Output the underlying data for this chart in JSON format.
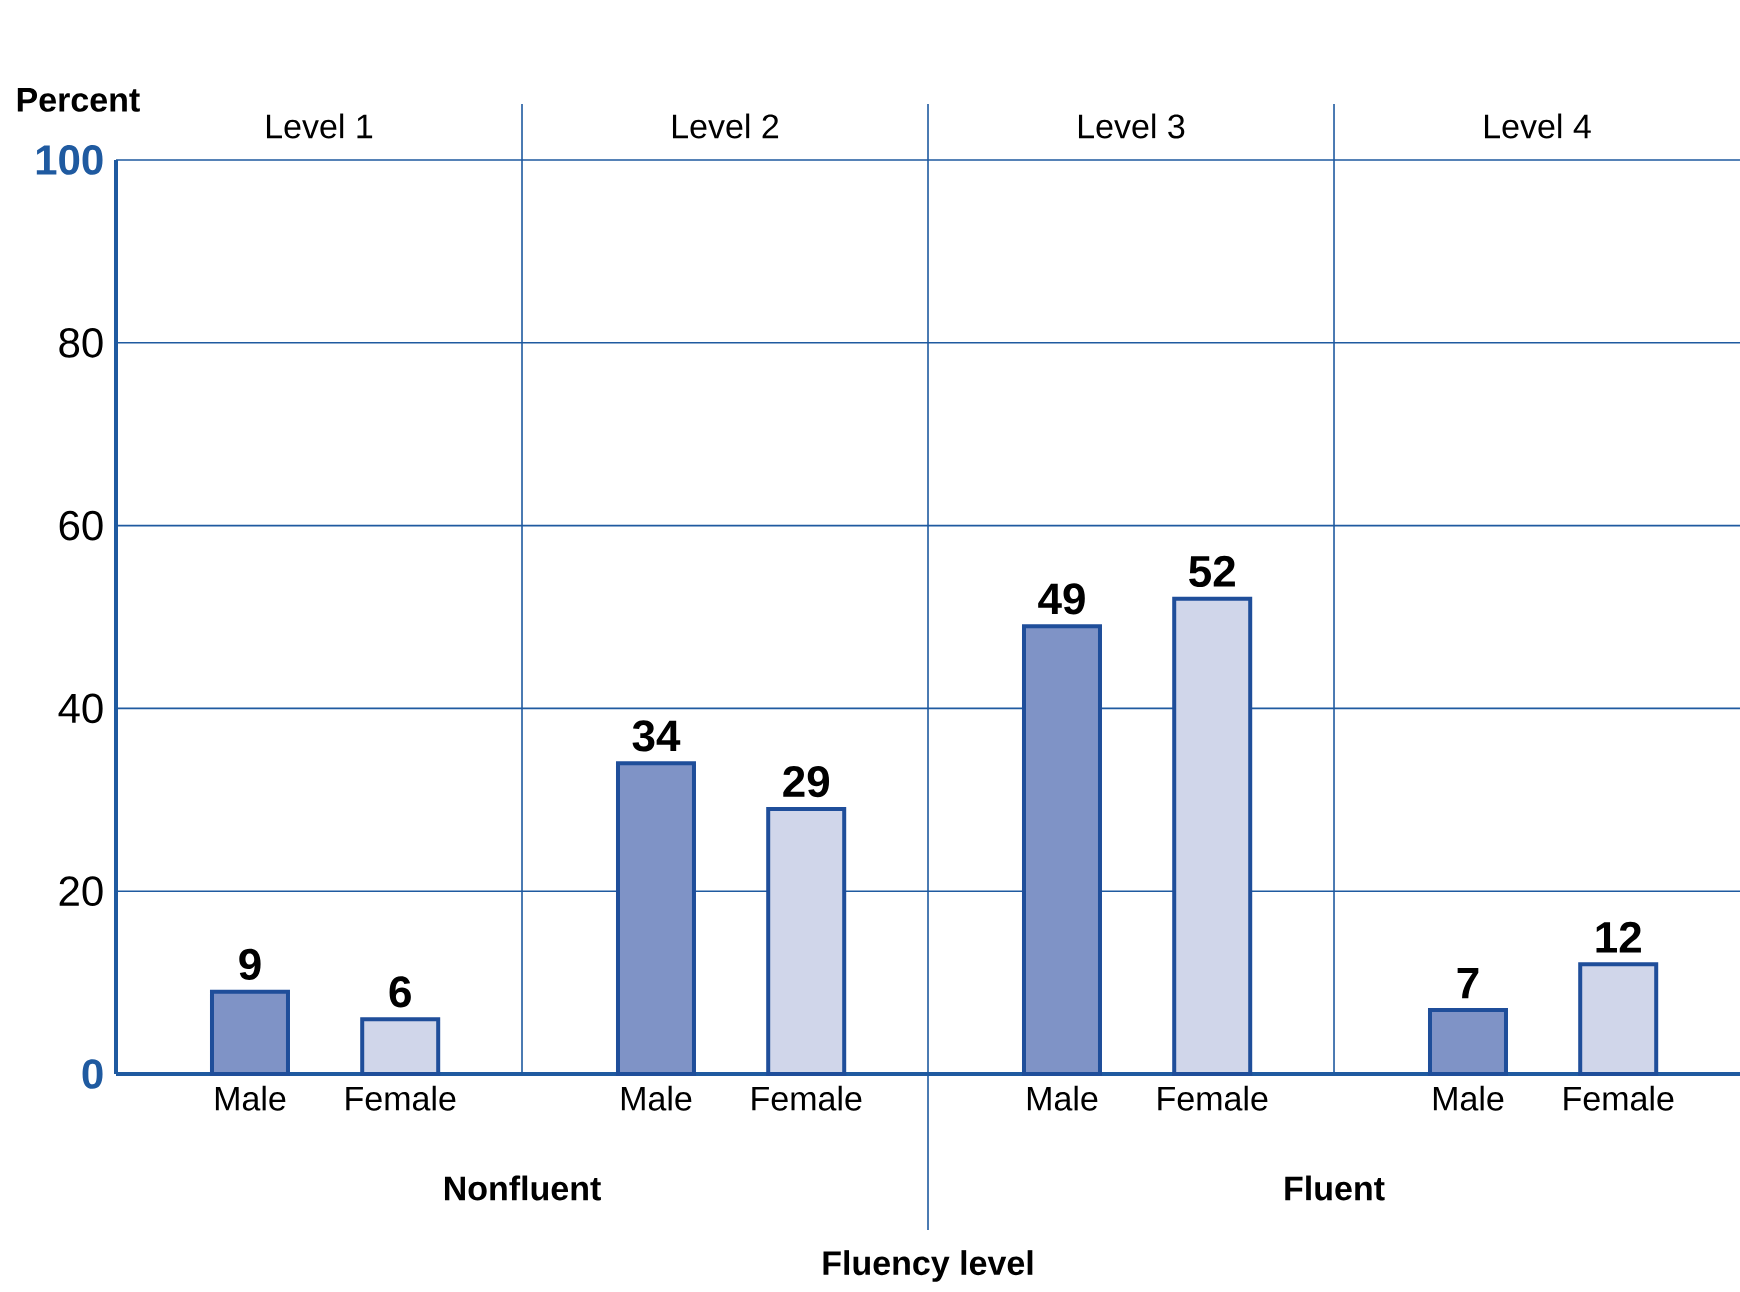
{
  "chart_data": {
    "type": "bar",
    "xlabel": "Fluency level",
    "ylabel": "Percent",
    "categories": [
      "Male",
      "Female",
      "Male",
      "Female",
      "Male",
      "Female",
      "Male",
      "Female"
    ],
    "values": [
      9,
      6,
      34,
      29,
      49,
      52,
      7,
      12
    ],
    "colors": [
      "#7f93c6",
      "#d0d6ea",
      "#7f93c6",
      "#d0d6ea",
      "#7f93c6",
      "#d0d6ea",
      "#7f93c6",
      "#d0d6ea"
    ],
    "ylim": [
      0,
      100
    ],
    "yticks": [
      0,
      20,
      40,
      60,
      80,
      100
    ],
    "grid": "y",
    "data_labels": true,
    "annotations": [
      "Level 1",
      "Level 2",
      "Level 3",
      "Level 4",
      "Nonfluent",
      "Fluent"
    ]
  }
}
